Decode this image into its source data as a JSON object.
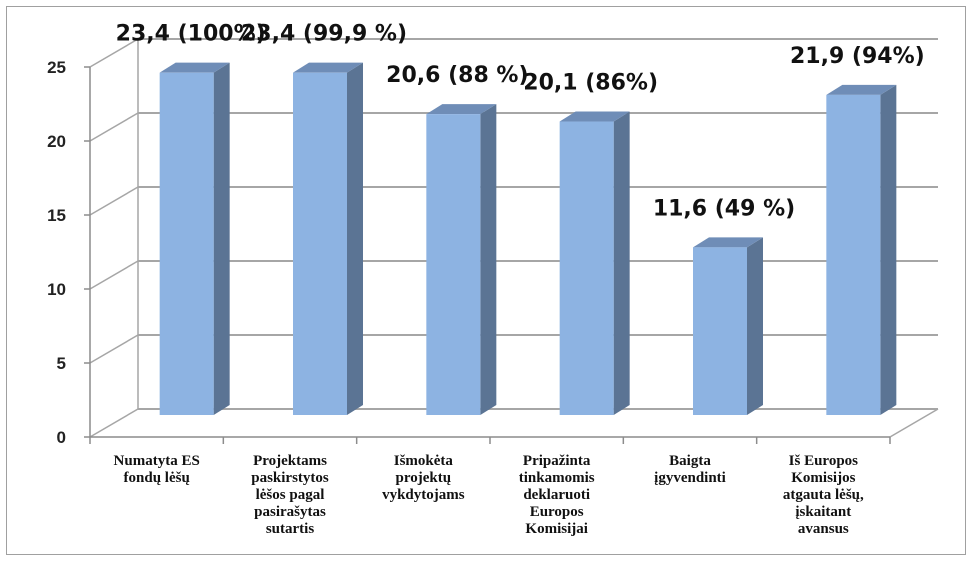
{
  "chart_data": {
    "type": "bar",
    "categories": [
      [
        "Numatyta ES",
        "fondų lėšų"
      ],
      [
        "Projektams",
        "paskirstytos",
        "lėšos pagal",
        "pasirašytas",
        "sutartis"
      ],
      [
        "Išmokėta",
        "projektų",
        "vykdytojams"
      ],
      [
        "Pripažinta",
        "tinkamomis",
        "deklaruoti",
        "Europos",
        "Komisijai"
      ],
      [
        "Baigta",
        "įgyvendinti"
      ],
      [
        "Iš Europos",
        "Komisijos",
        "atgauta lėšų,",
        "įskaitant",
        "avansus"
      ]
    ],
    "values": [
      23.4,
      23.4,
      20.6,
      20.1,
      11.6,
      21.9
    ],
    "data_labels": [
      "23,4 (100%)",
      "23,4 (99,9 %)",
      "20,6 (88 %)",
      "20,1 (86%)",
      "11,6 (49 %)",
      "21,9 (94%)"
    ],
    "ylim": [
      0,
      25
    ],
    "yticks": [
      0,
      5,
      10,
      15,
      20,
      25
    ],
    "grid": true,
    "bar_color": "#8db3e2",
    "bar_side_color": "#5b7494",
    "bar_top_color": "#6f8db7"
  }
}
